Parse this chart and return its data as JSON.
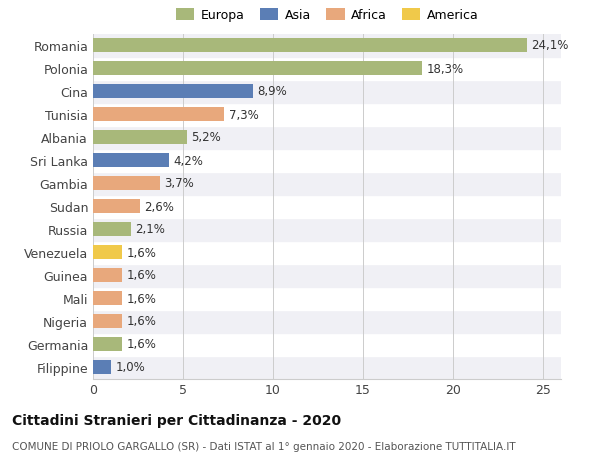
{
  "categories": [
    "Filippine",
    "Germania",
    "Nigeria",
    "Mali",
    "Guinea",
    "Venezuela",
    "Russia",
    "Sudan",
    "Gambia",
    "Sri Lanka",
    "Albania",
    "Tunisia",
    "Cina",
    "Polonia",
    "Romania"
  ],
  "values": [
    1.0,
    1.6,
    1.6,
    1.6,
    1.6,
    1.6,
    2.1,
    2.6,
    3.7,
    4.2,
    5.2,
    7.3,
    8.9,
    18.3,
    24.1
  ],
  "labels": [
    "1,0%",
    "1,6%",
    "1,6%",
    "1,6%",
    "1,6%",
    "1,6%",
    "2,1%",
    "2,6%",
    "3,7%",
    "4,2%",
    "5,2%",
    "7,3%",
    "8,9%",
    "18,3%",
    "24,1%"
  ],
  "colors": [
    "#5b7eb5",
    "#a8b87a",
    "#e8a87c",
    "#e8a87c",
    "#e8a87c",
    "#f0c94a",
    "#a8b87a",
    "#e8a87c",
    "#e8a87c",
    "#5b7eb5",
    "#a8b87a",
    "#e8a87c",
    "#5b7eb5",
    "#a8b87a",
    "#a8b87a"
  ],
  "legend": [
    {
      "label": "Europa",
      "color": "#a8b87a"
    },
    {
      "label": "Asia",
      "color": "#5b7eb5"
    },
    {
      "label": "Africa",
      "color": "#e8a87c"
    },
    {
      "label": "America",
      "color": "#f0c94a"
    }
  ],
  "xlim": [
    0,
    26
  ],
  "xticks": [
    0,
    5,
    10,
    15,
    20,
    25
  ],
  "title": "Cittadini Stranieri per Cittadinanza - 2020",
  "subtitle": "COMUNE DI PRIOLO GARGALLO (SR) - Dati ISTAT al 1° gennaio 2020 - Elaborazione TUTTITALIA.IT",
  "bg_color": "#ffffff",
  "plot_bg_color": "#ffffff",
  "band_color_even": "#f0f0f5",
  "band_color_odd": "#ffffff",
  "bar_height": 0.65,
  "label_fontsize": 8.5,
  "ytick_fontsize": 9,
  "xtick_fontsize": 9,
  "legend_fontsize": 9,
  "title_fontsize": 10,
  "subtitle_fontsize": 7.5
}
